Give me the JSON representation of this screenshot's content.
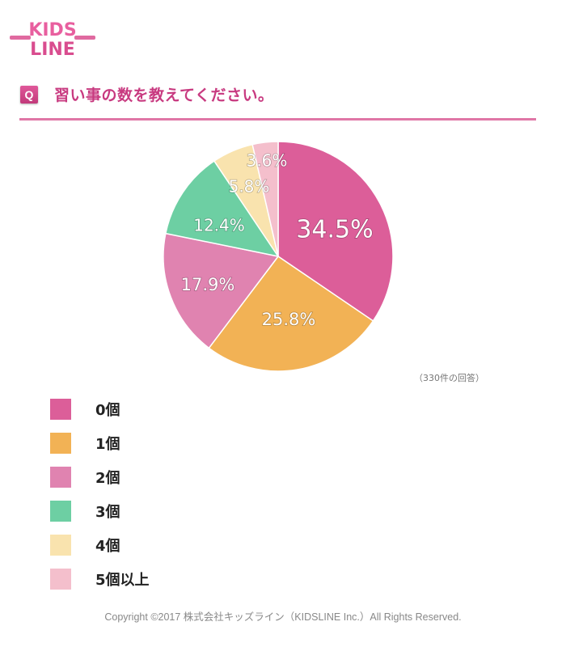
{
  "brand": {
    "logo_line1": "KIDS",
    "logo_line2": "LINE"
  },
  "question": {
    "badge": "Q",
    "text": "習い事の数を教えてください。"
  },
  "responses_note": "（330件の回答）",
  "chart_data": {
    "type": "pie",
    "title": "習い事の数を教えてください。",
    "categories": [
      "0個",
      "1個",
      "2個",
      "3個",
      "4個",
      "5個以上"
    ],
    "values": [
      34.5,
      25.8,
      17.9,
      12.4,
      5.8,
      3.6
    ],
    "labels": [
      "34.5%",
      "25.8%",
      "17.9%",
      "12.4%",
      "5.8%",
      "3.6%"
    ],
    "colors": [
      "#dc5e99",
      "#f2b255",
      "#e083b0",
      "#6dcfa3",
      "#f9e3ae",
      "#f4bfcc"
    ],
    "total_responses": 330,
    "legend_position": "bottom-left",
    "start_angle": "12 o'clock, clockwise"
  },
  "legend": [
    {
      "label": "0個",
      "color": "#dc5e99"
    },
    {
      "label": "1個",
      "color": "#f2b255"
    },
    {
      "label": "2個",
      "color": "#e083b0"
    },
    {
      "label": "3個",
      "color": "#6dcfa3"
    },
    {
      "label": "4個",
      "color": "#f9e3ae"
    },
    {
      "label": "5個以上",
      "color": "#f4bfcc"
    }
  ],
  "footer": {
    "copyright": "Copyright ©2017 株式会社キッズライン（KIDSLINE Inc.）All Rights Reserved."
  }
}
